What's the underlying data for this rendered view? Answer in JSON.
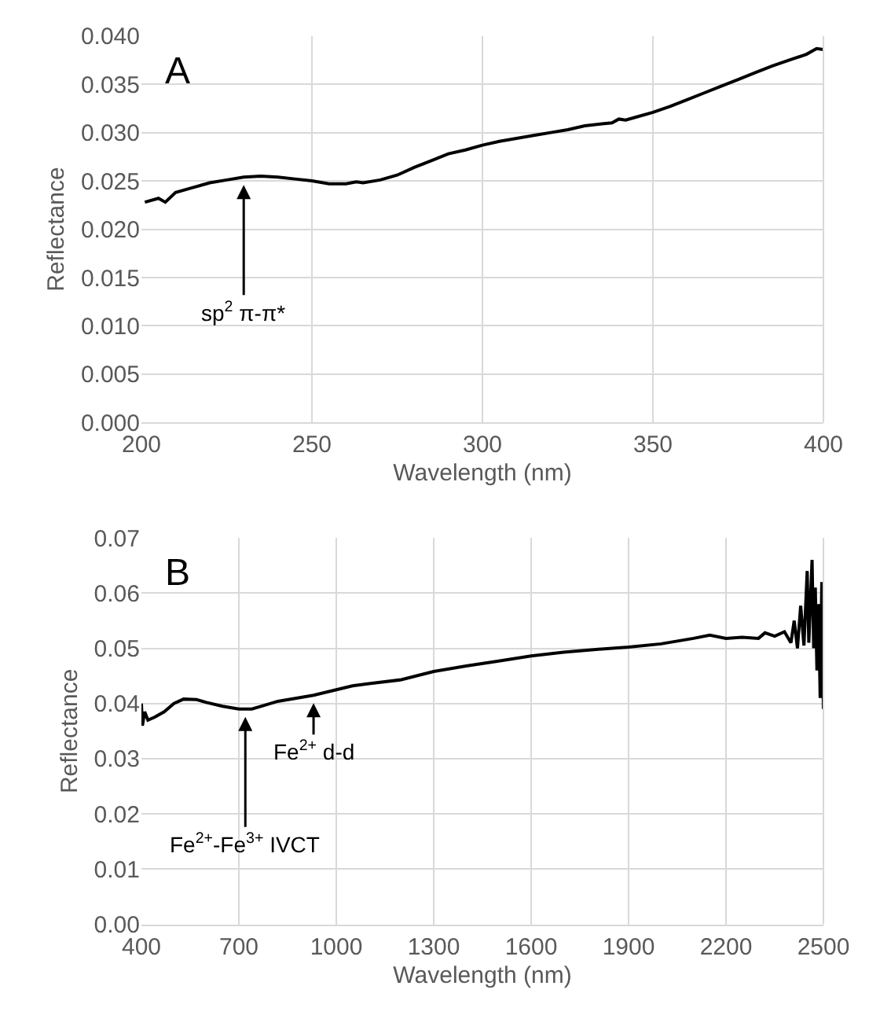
{
  "chart_data": [
    {
      "type": "line",
      "xlabel": "Wavelength (nm)",
      "ylabel": "Reflectance",
      "xlim": [
        200,
        400
      ],
      "xticks": [
        200,
        250,
        300,
        350,
        400
      ],
      "ylim": [
        0,
        0.04
      ],
      "yticks": [
        {
          "value": 0,
          "label": "0.000"
        },
        {
          "value": 0.005,
          "label": "0.005"
        },
        {
          "value": 0.01,
          "label": "0.010"
        },
        {
          "value": 0.015,
          "label": "0.015"
        },
        {
          "value": 0.02,
          "label": "0.020"
        },
        {
          "value": 0.025,
          "label": "0.025"
        },
        {
          "value": 0.03,
          "label": "0.030"
        },
        {
          "value": 0.035,
          "label": "0.035"
        },
        {
          "value": 0.04,
          "label": "0.040"
        }
      ],
      "grid": true,
      "marker": "none",
      "line_style": "solid",
      "x": [
        201,
        205,
        207,
        210,
        215,
        220,
        225,
        230,
        235,
        240,
        245,
        250,
        255,
        260,
        263,
        265,
        270,
        275,
        280,
        285,
        290,
        295,
        300,
        305,
        310,
        315,
        320,
        325,
        330,
        335,
        338,
        340,
        342,
        345,
        350,
        355,
        360,
        365,
        370,
        375,
        380,
        385,
        390,
        395,
        398,
        400
      ],
      "series": [
        {
          "color": "#000000",
          "values": [
            0.0228,
            0.0232,
            0.0228,
            0.0238,
            0.0243,
            0.0248,
            0.0251,
            0.0254,
            0.0255,
            0.0254,
            0.0252,
            0.025,
            0.0247,
            0.0247,
            0.0249,
            0.0248,
            0.0251,
            0.0256,
            0.0264,
            0.0271,
            0.0278,
            0.0282,
            0.0287,
            0.0291,
            0.0294,
            0.0297,
            0.03,
            0.0303,
            0.0307,
            0.0309,
            0.031,
            0.0314,
            0.0313,
            0.0316,
            0.0321,
            0.0327,
            0.0334,
            0.0341,
            0.0348,
            0.0355,
            0.0362,
            0.0369,
            0.0375,
            0.0381,
            0.0387,
            0.0386
          ]
        }
      ],
      "annotations": [
        "A",
        {
          "text": "sp$^{2}$ π-π*",
          "x": 230,
          "y": 0.0254
        }
      ]
    },
    {
      "type": "line",
      "xlabel": "Wavelength (nm)",
      "ylabel": "Reflectance",
      "xlim": [
        400,
        2500
      ],
      "xticks": [
        400,
        700,
        1000,
        1300,
        1600,
        1900,
        2200,
        2500
      ],
      "ylim": [
        0,
        0.07
      ],
      "yticks": [
        {
          "value": 0,
          "label": "0.00"
        },
        {
          "value": 0.01,
          "label": "0.01"
        },
        {
          "value": 0.02,
          "label": "0.02"
        },
        {
          "value": 0.03,
          "label": "0.03"
        },
        {
          "value": 0.04,
          "label": "0.04"
        },
        {
          "value": 0.05,
          "label": "0.05"
        },
        {
          "value": 0.06,
          "label": "0.06"
        },
        {
          "value": 0.07,
          "label": "0.07"
        }
      ],
      "grid": true,
      "marker": "none",
      "line_style": "solid",
      "x": [
        400,
        403,
        410,
        420,
        440,
        470,
        500,
        530,
        570,
        600,
        650,
        700,
        740,
        780,
        820,
        870,
        930,
        1000,
        1050,
        1100,
        1200,
        1300,
        1400,
        1500,
        1600,
        1700,
        1800,
        1900,
        2000,
        2100,
        2150,
        2200,
        2250,
        2300,
        2320,
        2350,
        2380,
        2400,
        2410,
        2420,
        2430,
        2440,
        2450,
        2455,
        2465,
        2470,
        2475,
        2480,
        2485,
        2490,
        2495,
        2500
      ],
      "series": [
        {
          "color": "#000000",
          "values": [
            0.04,
            0.036,
            0.0385,
            0.037,
            0.0375,
            0.0385,
            0.04,
            0.0408,
            0.0407,
            0.0402,
            0.0395,
            0.039,
            0.039,
            0.0397,
            0.0404,
            0.0409,
            0.0415,
            0.0425,
            0.0432,
            0.0436,
            0.0443,
            0.0458,
            0.0468,
            0.0477,
            0.0486,
            0.0493,
            0.0498,
            0.0502,
            0.0508,
            0.0518,
            0.0524,
            0.0518,
            0.052,
            0.0518,
            0.0528,
            0.0522,
            0.053,
            0.051,
            0.055,
            0.05,
            0.0577,
            0.0505,
            0.064,
            0.051,
            0.066,
            0.05,
            0.061,
            0.046,
            0.058,
            0.041,
            0.062,
            0.039
          ]
        }
      ],
      "annotations": [
        "B",
        {
          "text": "Fe$^{2+}$-Fe$^{3+}$ IVCT",
          "x": 720,
          "y": 0.039
        },
        {
          "text": "Fe$^{2+}$ d-d",
          "x": 930,
          "y": 0.0415
        }
      ]
    }
  ]
}
